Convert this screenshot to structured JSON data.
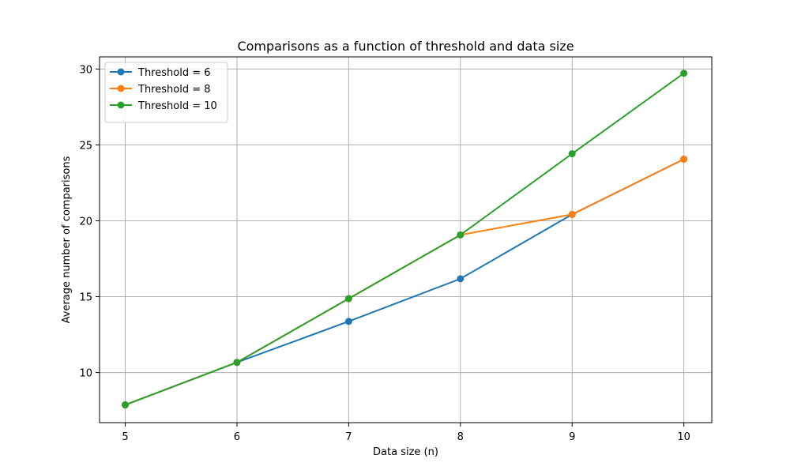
{
  "chart_data": {
    "type": "line",
    "title": "Comparisons as a function of threshold and data size",
    "xlabel": "Data size (n)",
    "ylabel": "Average number of comparisons",
    "x": [
      5,
      6,
      7,
      8,
      9,
      10
    ],
    "xlim": [
      4.77,
      10.25
    ],
    "ylim": [
      6.7,
      30.8
    ],
    "xticks": [
      5,
      6,
      7,
      8,
      9,
      10
    ],
    "yticks": [
      10,
      15,
      20,
      25,
      30
    ],
    "grid": true,
    "legend_position": "top-left",
    "series": [
      {
        "name": "Threshold = 6",
        "color": "#1f77b4",
        "values": [
          7.87,
          10.67,
          13.37,
          16.18,
          20.42,
          24.06
        ]
      },
      {
        "name": "Threshold = 8",
        "color": "#ff7f0e",
        "values": [
          7.87,
          10.67,
          14.87,
          19.07,
          20.42,
          24.06
        ]
      },
      {
        "name": "Threshold = 10",
        "color": "#2ca02c",
        "values": [
          7.87,
          10.67,
          14.87,
          19.07,
          24.42,
          29.72
        ]
      }
    ]
  }
}
